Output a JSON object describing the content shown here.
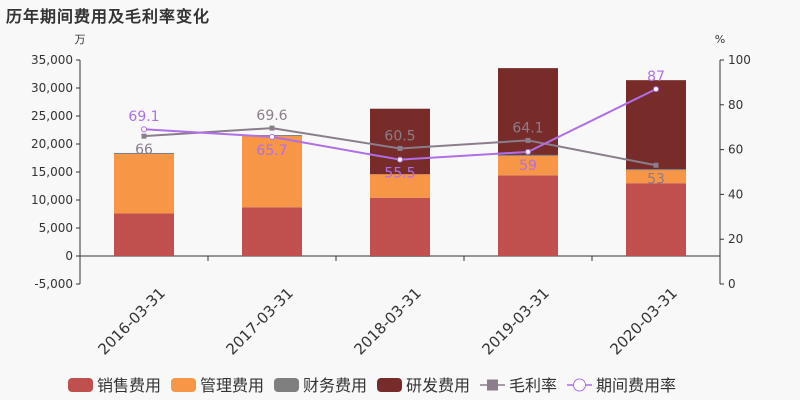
{
  "title": "历年期间费用及毛利率变化",
  "chart_data": {
    "type": "bar",
    "stacked": true,
    "title": "历年期间费用及毛利率变化",
    "categories": [
      "2016-03-31",
      "2017-03-31",
      "2018-03-31",
      "2019-03-31",
      "2020-03-31"
    ],
    "y_left": {
      "unit": "万",
      "ylim": [
        -5000,
        35000
      ],
      "ticks": [
        "-5,000",
        "0",
        "5,000",
        "10,000",
        "15,000",
        "20,000",
        "25,000",
        "30,000",
        "35,000"
      ],
      "tick_values": [
        -5000,
        0,
        5000,
        10000,
        15000,
        20000,
        25000,
        30000,
        35000
      ]
    },
    "y_right": {
      "unit": "%",
      "ylim": [
        0,
        100
      ],
      "ticks": [
        "0",
        "20",
        "40",
        "60",
        "80",
        "100"
      ],
      "tick_values": [
        0,
        20,
        40,
        60,
        80,
        100
      ]
    },
    "series": [
      {
        "name": "销售费用",
        "kind": "bar",
        "color": "#c0504d",
        "values": [
          7600,
          8700,
          10400,
          14400,
          13000
        ]
      },
      {
        "name": "管理费用",
        "kind": "bar",
        "color": "#f79646",
        "values": [
          10600,
          12800,
          4200,
          3500,
          2400
        ]
      },
      {
        "name": "财务费用",
        "kind": "bar",
        "color": "#7f7f7f",
        "values": [
          200,
          100,
          -100,
          150,
          100
        ]
      },
      {
        "name": "研发费用",
        "kind": "bar",
        "color": "#772c2a",
        "values": [
          0,
          0,
          11700,
          15500,
          15900
        ]
      },
      {
        "name": "毛利率",
        "kind": "line",
        "axis": "right",
        "color": "#8b7d8b",
        "marker": "square",
        "values": [
          66,
          69.6,
          60.5,
          64.1,
          53
        ],
        "labels": [
          "66",
          "69.6",
          "60.5",
          "64.1",
          "53"
        ]
      },
      {
        "name": "期间费用率",
        "kind": "line",
        "axis": "right",
        "color": "#b06ee8",
        "marker": "circle",
        "values": [
          69.1,
          65.7,
          55.5,
          59,
          87
        ],
        "labels": [
          "69.1",
          "65.7",
          "55.5",
          "59",
          "87"
        ]
      }
    ],
    "grid": false,
    "legend": "bottom"
  }
}
